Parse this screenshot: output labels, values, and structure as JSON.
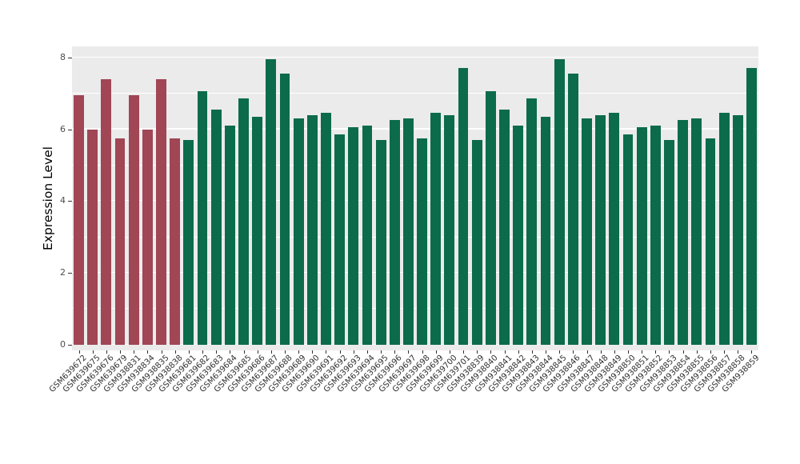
{
  "chart_data": {
    "type": "bar",
    "title": "",
    "ylabel": "Expression Level",
    "xlabel": "",
    "ylim": [
      0,
      8.35
    ],
    "y_ticks": [
      0,
      2,
      4,
      6,
      8
    ],
    "grid": "major-and-minor-horizontal",
    "legend_position": "none",
    "panel_background": "#EBEBEB",
    "gridline_color": "#FFFFFF",
    "tick_label_color": "#4D4D4D",
    "axis_title_color": "#000000",
    "highlight_count": 8,
    "highlight_color": "#A04655",
    "default_color": "#0B6B4A",
    "categories": [
      "GSM639672",
      "GSM639675",
      "GSM639676",
      "GSM639679",
      "GSM938831",
      "GSM938834",
      "GSM938835",
      "GSM938838",
      "GSM639681",
      "GSM639682",
      "GSM639683",
      "GSM639684",
      "GSM639685",
      "GSM639686",
      "GSM639687",
      "GSM639688",
      "GSM639689",
      "GSM639690",
      "GSM639691",
      "GSM639692",
      "GSM639693",
      "GSM639694",
      "GSM639695",
      "GSM639696",
      "GSM639697",
      "GSM639698",
      "GSM639699",
      "GSM639700",
      "GSM639701",
      "GSM938839",
      "GSM938840",
      "GSM938841",
      "GSM938842",
      "GSM938843",
      "GSM938844",
      "GSM938845",
      "GSM938846",
      "GSM938847",
      "GSM938848",
      "GSM938849",
      "GSM938850",
      "GSM938851",
      "GSM938852",
      "GSM938853",
      "GSM938854",
      "GSM938855",
      "GSM938856",
      "GSM938857",
      "GSM938858",
      "GSM938859"
    ],
    "values": [
      6.95,
      6.0,
      7.4,
      5.75,
      6.95,
      6.0,
      7.4,
      5.75,
      5.7,
      7.05,
      6.55,
      6.1,
      6.85,
      6.35,
      7.95,
      7.55,
      6.3,
      6.4,
      6.45,
      5.85,
      6.05,
      6.1,
      5.7,
      6.25,
      6.3,
      5.75,
      6.45,
      6.4,
      7.7,
      5.7,
      7.05,
      6.55,
      6.1,
      6.85,
      6.35,
      7.95,
      7.55,
      6.3,
      6.4,
      6.45,
      5.85,
      6.05,
      6.1,
      5.7,
      6.25,
      6.3,
      5.75,
      6.45,
      6.4,
      7.7
    ]
  }
}
